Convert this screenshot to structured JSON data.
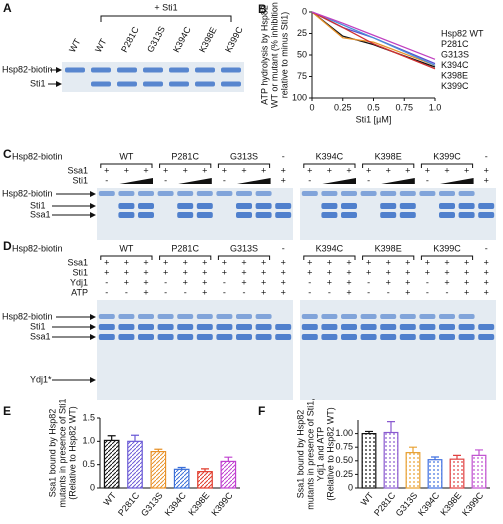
{
  "panels": {
    "a": {
      "letter": "A",
      "treatment": "+ Sti1",
      "lanes": [
        "WT",
        "WT",
        "P281C",
        "G313S",
        "K394C",
        "K398E",
        "K399C"
      ],
      "bands": [
        "Hsp82-biotin",
        "Sti1"
      ]
    },
    "c": {
      "letter": "C",
      "header": "Hsp82-biotin",
      "groups": [
        [
          "WT",
          "P281C",
          "G313S",
          "-"
        ],
        [
          "K394C",
          "K398E",
          "K399C",
          "-"
        ]
      ],
      "rows": [
        {
          "label": "Ssa1",
          "signs": [
            [
              "+",
              "+",
              "+",
              "+",
              "+",
              "+",
              "+",
              "+",
              "+",
              "+"
            ],
            [
              "+",
              "+",
              "+",
              "+",
              "+",
              "+",
              "+",
              "+",
              "+",
              "+"
            ]
          ]
        },
        {
          "label": "Sti1",
          "signs": [
            [
              "-",
              "-",
              "-",
              "+"
            ],
            [
              "-",
              "-",
              "-",
              "+"
            ]
          ]
        }
      ],
      "bands": [
        "Hsp82-biotin",
        "Sti1",
        "Ssa1"
      ]
    },
    "d": {
      "letter": "D",
      "header": "Hsp82-biotin",
      "groups": [
        [
          "WT",
          "P281C",
          "G313S",
          "-"
        ],
        [
          "K394C",
          "K398E",
          "K399C",
          "-"
        ]
      ],
      "rows": [
        {
          "label": "Ssa1",
          "signs": [
            [
              "+",
              "+",
              "+",
              "+",
              "+",
              "+",
              "+",
              "+",
              "+",
              "+"
            ],
            [
              "+",
              "+",
              "+",
              "+",
              "+",
              "+",
              "+",
              "+",
              "+",
              "+"
            ]
          ]
        },
        {
          "label": "Sti1",
          "signs": [
            [
              "+",
              "+",
              "+",
              "+",
              "+",
              "+",
              "+",
              "+",
              "+",
              "+"
            ],
            [
              "+",
              "+",
              "+",
              "+",
              "+",
              "+",
              "+",
              "+",
              "+",
              "+"
            ]
          ]
        },
        {
          "label": "Ydj1",
          "signs": [
            [
              "-",
              "+",
              "+",
              "-",
              "+",
              "+",
              "-",
              "+",
              "+",
              "+"
            ],
            [
              "-",
              "+",
              "+",
              "-",
              "+",
              "+",
              "-",
              "+",
              "+",
              "+"
            ]
          ]
        },
        {
          "label": "ATP",
          "signs": [
            [
              "-",
              "-",
              "+",
              "-",
              "-",
              "+",
              "-",
              "-",
              "+",
              "+"
            ],
            [
              "-",
              "-",
              "+",
              "-",
              "-",
              "+",
              "-",
              "-",
              "+",
              "+"
            ]
          ]
        }
      ],
      "bands": [
        "Hsp82-biotin",
        "Sti1",
        "Ssa1",
        "Ydj1*"
      ]
    }
  },
  "chart_data": [
    {
      "type": "line",
      "panel_label": "B",
      "y_label": [
        "ATP hydrolysis by Hsp82",
        "WT or mutant (% inhibition",
        "relative to minus Sti1)"
      ],
      "x_label": "Sti1 [µM]",
      "x": [
        0,
        0.25,
        0.5,
        1
      ],
      "xlim": [
        0,
        1
      ],
      "xticks": [
        0,
        0.25,
        0.5,
        0.75,
        {
          "value": 1,
          "label": "1.0"
        }
      ],
      "ylim": [
        0,
        100
      ],
      "yticks": [
        0,
        25,
        50,
        75,
        100
      ],
      "y_inverted": true,
      "series": [
        {
          "name": "Hsp82 WT",
          "color": "#111111",
          "values": [
            0,
            28,
            38,
            64
          ]
        },
        {
          "name": "P281C",
          "color": "#5a4fcf",
          "values": [
            0,
            18,
            30,
            60
          ]
        },
        {
          "name": "G313S",
          "color": "#e8922a",
          "values": [
            0,
            30,
            35,
            62
          ]
        },
        {
          "name": "K394C",
          "color": "#4a90d9",
          "values": [
            0,
            15,
            30,
            62
          ]
        },
        {
          "name": "K398E",
          "color": "#d03030",
          "values": [
            0,
            18,
            37,
            66
          ]
        },
        {
          "name": "K399C",
          "color": "#c040c0",
          "values": [
            0,
            13,
            27,
            55
          ]
        }
      ]
    },
    {
      "type": "bar",
      "panel_label": "E",
      "fill_pattern": "hatch",
      "y_label": [
        "Ssa1 bound by Hsp82",
        "mutants in presence of Sti1",
        "(Relative to Hsp82 WT)"
      ],
      "categories": [
        "WT",
        "P281C",
        "G313S",
        "K394C",
        "K398E",
        "K399C"
      ],
      "values": [
        1.02,
        1.0,
        0.78,
        0.4,
        0.35,
        0.57
      ],
      "errors": [
        0.1,
        0.13,
        0.05,
        0.04,
        0.06,
        0.09
      ],
      "colors": [
        "#111111",
        "#6b5bd6",
        "#e8922a",
        "#3a6fd8",
        "#e03a2a",
        "#c040d0"
      ],
      "ylim": [
        0,
        1.5
      ],
      "yticks": [
        0,
        0.5,
        {
          "value": 1,
          "label": "1.0"
        },
        1.5
      ]
    },
    {
      "type": "bar",
      "panel_label": "F",
      "fill_pattern": "dots",
      "y_label": [
        "Ssa1 bound by Hsp82",
        "mutants in presence of Sti1,",
        "Ydj1 and ATP",
        "(Relative to Hsp82 WT)"
      ],
      "categories": [
        "WT",
        "P281C",
        "G313S",
        "K394C",
        "K398E",
        "K399C"
      ],
      "values": [
        1.0,
        1.02,
        0.65,
        0.52,
        0.53,
        0.6
      ],
      "errors": [
        0.04,
        0.2,
        0.1,
        0.05,
        0.07,
        0.1
      ],
      "colors": [
        "#111111",
        "#8a5ad0",
        "#e8a030",
        "#4070e0",
        "#e04040",
        "#c050d0"
      ],
      "ylim": [
        0,
        1.25
      ],
      "yticks": [
        0,
        0.25,
        {
          "value": 0.5,
          "label": "0.50"
        },
        0.75,
        {
          "value": 1,
          "label": "1.00"
        }
      ]
    }
  ]
}
